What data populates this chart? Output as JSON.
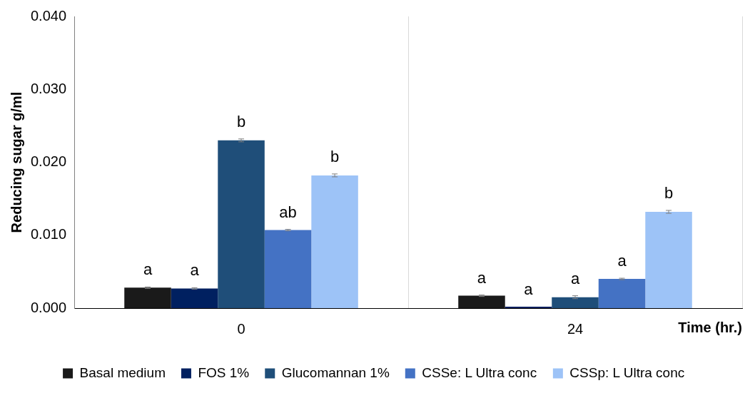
{
  "chart_data": {
    "type": "bar",
    "ylabel": "Reducing sugar g/ml",
    "xlabel": "Time (hr.)",
    "categories": [
      "0",
      "24"
    ],
    "ylim": [
      0,
      0.04
    ],
    "yticks": [
      {
        "value": 0,
        "label": "0.000"
      },
      {
        "value": 0.01,
        "label": "0.010"
      },
      {
        "value": 0.02,
        "label": "0.020"
      },
      {
        "value": 0.03,
        "label": "0.030"
      },
      {
        "value": 0.04,
        "label": "0.040"
      }
    ],
    "grid": "x",
    "legend": "bottom",
    "series": [
      {
        "name": "Basal medium",
        "color": "#1a1a1a",
        "values": [
          0.0028,
          0.0017
        ],
        "errors": [
          0.0001,
          0.0001
        ],
        "value_labels": [
          "a",
          "a"
        ]
      },
      {
        "name": "FOS 1%",
        "color": "#002060",
        "values": [
          0.0027,
          0.0002
        ],
        "errors": [
          0.0001,
          null
        ],
        "value_labels": [
          "a",
          "a"
        ]
      },
      {
        "name": "Glucomannan 1%",
        "color": "#1f4e79",
        "values": [
          0.023,
          0.0015
        ],
        "errors": [
          0.0002,
          0.0002
        ],
        "value_labels": [
          "b",
          "a"
        ]
      },
      {
        "name": "CSSe: L Ultra conc",
        "color": "#4472c4",
        "values": [
          0.0107,
          0.004
        ],
        "errors": [
          0.0001,
          0.0001
        ],
        "value_labels": [
          "ab",
          "a"
        ]
      },
      {
        "name": "CSSp: L Ultra conc",
        "color": "#9dc3f7",
        "values": [
          0.0182,
          0.0132
        ],
        "errors": [
          0.0002,
          0.0002
        ],
        "value_labels": [
          "b",
          "b"
        ]
      }
    ]
  }
}
